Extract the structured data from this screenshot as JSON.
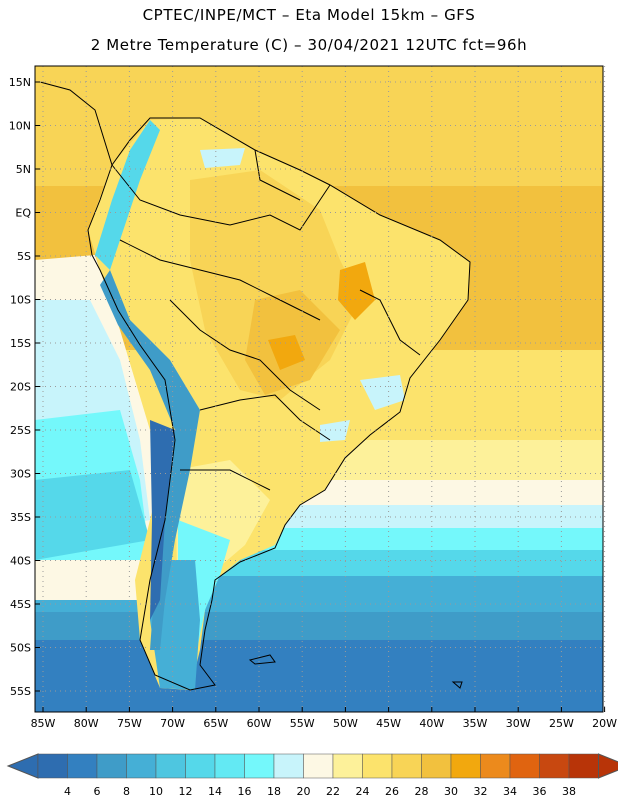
{
  "title": {
    "line1": "CPTEC/INPE/MCT –  Eta Model 15km – GFS",
    "line2": "2 Metre Temperature (C) – 30/04/2021 12UTC fct=96h"
  },
  "axes": {
    "lat_labels": [
      "15N",
      "10N",
      "5N",
      "EQ",
      "5S",
      "10S",
      "15S",
      "20S",
      "25S",
      "30S",
      "35S",
      "40S",
      "45S",
      "50S",
      "55S"
    ],
    "lon_labels": [
      "85W",
      "80W",
      "75W",
      "70W",
      "65W",
      "60W",
      "55W",
      "50W",
      "45W",
      "40W",
      "35W",
      "30W",
      "25W",
      "20W"
    ],
    "lat_range": [
      15,
      -57
    ],
    "lon_range": [
      -85,
      -20
    ]
  },
  "colorbar": {
    "ticks": [
      "4",
      "6",
      "8",
      "10",
      "12",
      "14",
      "16",
      "18",
      "20",
      "22",
      "24",
      "26",
      "28",
      "30",
      "32",
      "34",
      "36",
      "38"
    ],
    "colors": [
      "#2e6db0",
      "#3380c0",
      "#3f9cc8",
      "#45afd6",
      "#4ec6e0",
      "#55d8ea",
      "#63e9f3",
      "#74f8fb",
      "#c8f4fb",
      "#fdf8e4",
      "#fdf19a",
      "#fce36c",
      "#f8d456",
      "#f2c13e",
      "#f2a80e",
      "#ec8a1c",
      "#e06410",
      "#c84810",
      "#b83408"
    ],
    "under_color": "#2e6db0",
    "over_color": "#b83408"
  },
  "colors": {
    "land_warm": "#f8d456",
    "land_mid": "#fce36c",
    "ocean_warm": "#f2c13e",
    "cold_ocean": "#45afd6",
    "deep_cold": "#2e6db0"
  }
}
